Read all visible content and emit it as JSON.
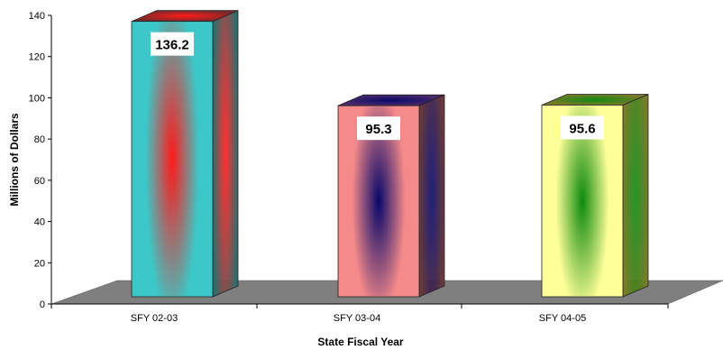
{
  "chart_data": {
    "type": "bar",
    "style": "3d-column",
    "categories": [
      "SFY 02-03",
      "SFY 03-04",
      "SFY 04-05"
    ],
    "values": [
      136.2,
      95.3,
      95.6
    ],
    "data_labels": [
      "136.2",
      "95.3",
      "95.6"
    ],
    "title": "",
    "xlabel": "State Fiscal Year",
    "ylabel": "Millions of Dollars",
    "ylim": [
      0,
      140
    ],
    "yticks": [
      0,
      20,
      40,
      60,
      80,
      100,
      120,
      140
    ],
    "grid": false,
    "legend": "none",
    "bar_colors": [
      {
        "base": "#3cc8c8",
        "glow": "#ff1a1a",
        "side": "#2a6e6e",
        "top": "#7a2a2a"
      },
      {
        "base": "#f58a8a",
        "glow": "#08086a",
        "side": "#6a3a3a",
        "top": "#4a2a6a"
      },
      {
        "base": "#ffff99",
        "glow": "#0e8a0e",
        "side": "#7a7a2a",
        "top": "#7a7a2a"
      }
    ],
    "floor_color": "#7f7f7f"
  }
}
